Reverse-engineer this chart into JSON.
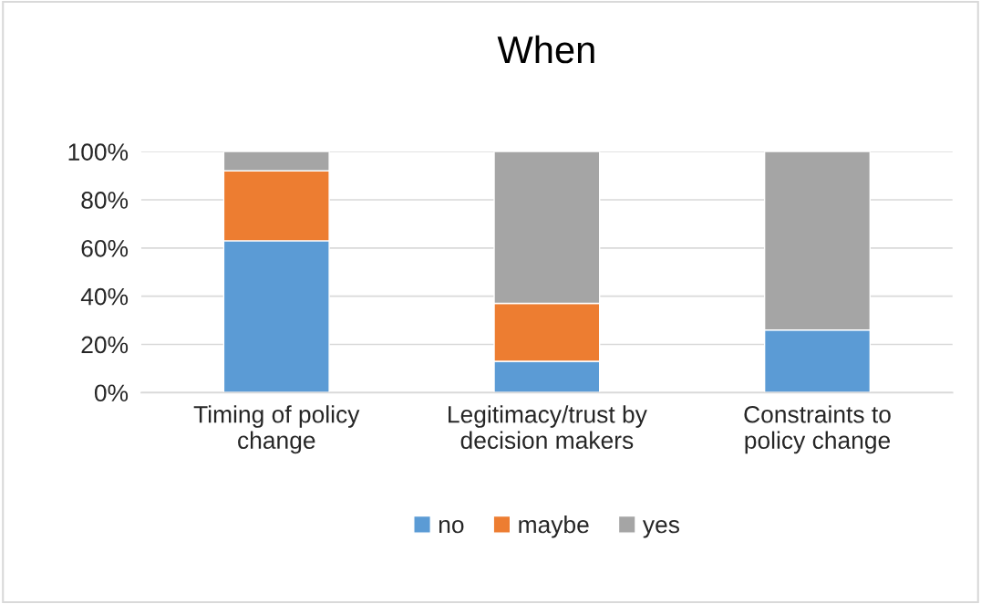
{
  "chart_data": {
    "type": "bar",
    "title": "When",
    "stacked": true,
    "categories": [
      "Timing of policy\nchange",
      "Legitimacy/trust by\ndecision makers",
      "Constraints to\npolicy change"
    ],
    "series": [
      {
        "name": "no",
        "color": "#5b9bd5",
        "values": [
          63,
          13,
          26
        ]
      },
      {
        "name": "maybe",
        "color": "#ed7d31",
        "values": [
          29,
          24,
          0
        ]
      },
      {
        "name": "yes",
        "color": "#a5a5a5",
        "values": [
          8,
          63,
          74
        ]
      }
    ],
    "ylim": [
      0,
      100
    ],
    "yticks": [
      {
        "value": 0,
        "label": "0%"
      },
      {
        "value": 20,
        "label": "20%"
      },
      {
        "value": 40,
        "label": "40%"
      },
      {
        "value": 60,
        "label": "60%"
      },
      {
        "value": 80,
        "label": "80%"
      },
      {
        "value": 100,
        "label": "100%"
      }
    ],
    "grid": "y",
    "legend": "bottom"
  }
}
